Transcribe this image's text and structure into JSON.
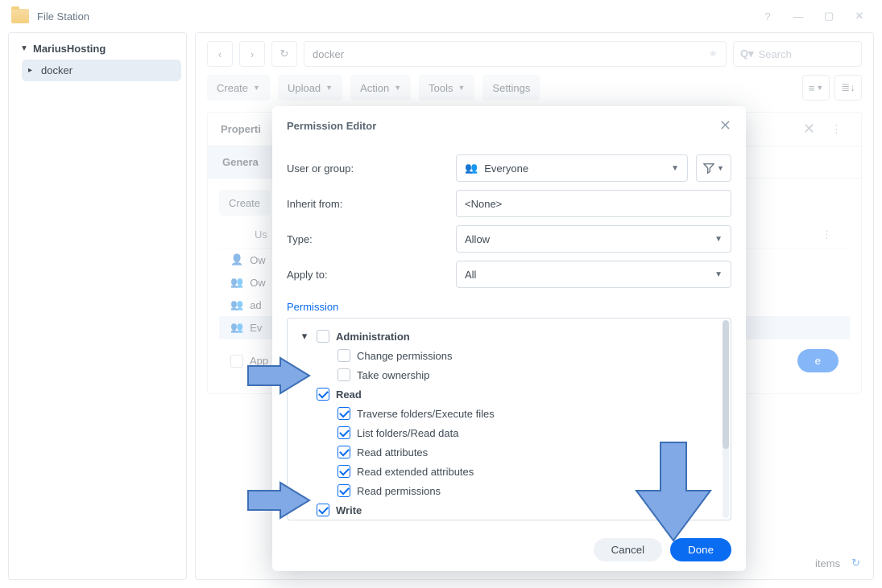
{
  "window": {
    "title": "File Station"
  },
  "sidebar": {
    "root": "MariusHosting",
    "items": [
      "docker"
    ],
    "selected_index": 0
  },
  "path": {
    "value": "docker"
  },
  "search": {
    "placeholder": "Search"
  },
  "toolbar": {
    "create": "Create",
    "upload": "Upload",
    "action": "Action",
    "tools": "Tools",
    "settings": "Settings"
  },
  "properties": {
    "title": "Properti",
    "tab_general": "Genera",
    "create": "Create",
    "col_user": "Us",
    "rows": [
      {
        "type": "user",
        "label": "Ow"
      },
      {
        "type": "group",
        "label": "Ow"
      },
      {
        "type": "group",
        "label": "ad"
      },
      {
        "type": "group",
        "label": "Ev",
        "selected": true
      }
    ],
    "apply_label": "App",
    "save": "e",
    "footer_items": "items"
  },
  "modal": {
    "title": "Permission Editor",
    "labels": {
      "user_or_group": "User or group:",
      "inherit_from": "Inherit from:",
      "type": "Type:",
      "apply_to": "Apply to:",
      "permission": "Permission"
    },
    "fields": {
      "user_or_group": "Everyone",
      "inherit_from": "<None>",
      "type": "Allow",
      "apply_to": "All"
    },
    "permissions": [
      {
        "label": "Administration",
        "bold": true,
        "checked": false,
        "level": 1,
        "twisty": "down"
      },
      {
        "label": "Change permissions",
        "bold": false,
        "checked": false,
        "level": 2
      },
      {
        "label": "Take ownership",
        "bold": false,
        "checked": false,
        "level": 2
      },
      {
        "label": "Read",
        "bold": true,
        "checked": true,
        "level": 1,
        "twisty": "none"
      },
      {
        "label": "Traverse folders/Execute files",
        "bold": false,
        "checked": true,
        "level": 2
      },
      {
        "label": "List folders/Read data",
        "bold": false,
        "checked": true,
        "level": 2
      },
      {
        "label": "Read attributes",
        "bold": false,
        "checked": true,
        "level": 2
      },
      {
        "label": "Read extended attributes",
        "bold": false,
        "checked": true,
        "level": 2
      },
      {
        "label": "Read permissions",
        "bold": false,
        "checked": true,
        "level": 2
      },
      {
        "label": "Write",
        "bold": true,
        "checked": true,
        "level": 1,
        "twisty": "none"
      }
    ],
    "cancel": "Cancel",
    "done": "Done"
  },
  "colors": {
    "accent": "#0a6cf1",
    "arrow_fill": "#80a9e6",
    "arrow_stroke": "#3d6fb5",
    "border": "#d6dde4",
    "text": "#414b55"
  }
}
